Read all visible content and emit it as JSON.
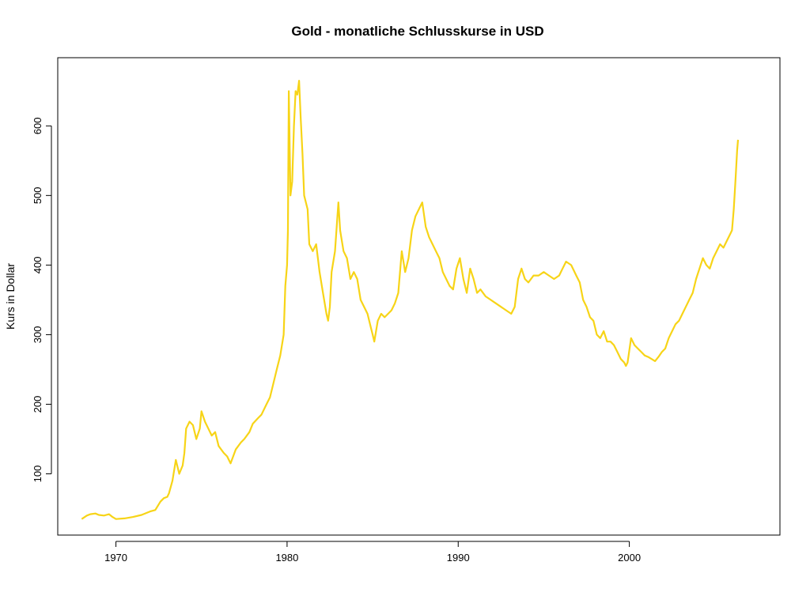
{
  "chart_data": {
    "type": "line",
    "title": "Gold  - monatliche Schlusskurse in USD",
    "xlabel": "",
    "ylabel": "Kurs in Dollar",
    "xlim": [
      1966.6,
      2008.8
    ],
    "ylim": [
      12,
      698
    ],
    "x_ticks": [
      1970,
      1980,
      1990,
      2000
    ],
    "y_ticks": [
      100,
      200,
      300,
      400,
      500,
      600
    ],
    "grid": false,
    "legend": "none",
    "series": [
      {
        "color": "#f7d417",
        "x": [
          1968.0,
          1968.3,
          1968.5,
          1968.8,
          1969.0,
          1969.3,
          1969.6,
          1969.8,
          1970.0,
          1970.5,
          1971.0,
          1971.5,
          1972.0,
          1972.3,
          1972.6,
          1972.8,
          1973.0,
          1973.1,
          1973.3,
          1973.5,
          1973.7,
          1973.9,
          1974.0,
          1974.1,
          1974.3,
          1974.5,
          1974.7,
          1974.9,
          1975.0,
          1975.2,
          1975.4,
          1975.6,
          1975.8,
          1976.0,
          1976.3,
          1976.5,
          1976.7,
          1977.0,
          1977.3,
          1977.5,
          1977.8,
          1978.0,
          1978.3,
          1978.5,
          1978.8,
          1979.0,
          1979.2,
          1979.4,
          1979.6,
          1979.8,
          1979.9,
          1980.0,
          1980.05,
          1980.1,
          1980.2,
          1980.3,
          1980.4,
          1980.5,
          1980.6,
          1980.7,
          1980.8,
          1980.9,
          1981.0,
          1981.2,
          1981.3,
          1981.5,
          1981.7,
          1981.9,
          1982.1,
          1982.3,
          1982.4,
          1982.5,
          1982.6,
          1982.8,
          1983.0,
          1983.1,
          1983.3,
          1983.5,
          1983.7,
          1983.9,
          1984.1,
          1984.3,
          1984.5,
          1984.7,
          1984.9,
          1985.0,
          1985.1,
          1985.3,
          1985.5,
          1985.7,
          1985.9,
          1986.1,
          1986.3,
          1986.5,
          1986.7,
          1986.9,
          1987.1,
          1987.3,
          1987.5,
          1987.7,
          1987.9,
          1988.1,
          1988.3,
          1988.5,
          1988.7,
          1988.9,
          1989.1,
          1989.3,
          1989.5,
          1989.7,
          1989.9,
          1990.1,
          1990.3,
          1990.5,
          1990.7,
          1990.9,
          1991.1,
          1991.3,
          1991.6,
          1991.9,
          1992.2,
          1992.5,
          1992.8,
          1993.1,
          1993.3,
          1993.5,
          1993.7,
          1993.9,
          1994.1,
          1994.4,
          1994.7,
          1995.0,
          1995.3,
          1995.6,
          1995.9,
          1996.1,
          1996.3,
          1996.6,
          1996.9,
          1997.1,
          1997.3,
          1997.5,
          1997.7,
          1997.9,
          1998.1,
          1998.3,
          1998.5,
          1998.7,
          1998.9,
          1999.1,
          1999.3,
          1999.5,
          1999.7,
          1999.8,
          1999.9,
          2000.1,
          2000.3,
          2000.5,
          2000.7,
          2000.9,
          2001.1,
          2001.3,
          2001.5,
          2001.7,
          2001.9,
          2002.1,
          2002.3,
          2002.5,
          2002.7,
          2002.9,
          2003.1,
          2003.3,
          2003.5,
          2003.7,
          2003.9,
          2004.1,
          2004.3,
          2004.5,
          2004.7,
          2004.9,
          2005.1,
          2005.3,
          2005.5,
          2005.7,
          2005.9,
          2006.0,
          2006.1,
          2006.2,
          2006.3,
          2006.35
        ],
        "y": [
          35,
          40,
          42,
          43,
          41,
          40,
          42,
          38,
          35,
          36,
          38,
          41,
          46,
          48,
          60,
          65,
          67,
          72,
          90,
          120,
          100,
          112,
          130,
          165,
          175,
          170,
          150,
          165,
          190,
          175,
          165,
          155,
          160,
          140,
          130,
          125,
          115,
          135,
          145,
          150,
          160,
          172,
          180,
          185,
          200,
          210,
          230,
          250,
          270,
          300,
          370,
          400,
          450,
          650,
          500,
          520,
          600,
          650,
          645,
          665,
          610,
          560,
          500,
          480,
          430,
          420,
          430,
          390,
          360,
          330,
          320,
          340,
          390,
          420,
          490,
          450,
          420,
          410,
          380,
          390,
          380,
          350,
          340,
          330,
          310,
          300,
          290,
          320,
          330,
          325,
          330,
          335,
          345,
          360,
          420,
          390,
          410,
          450,
          470,
          480,
          490,
          455,
          440,
          430,
          420,
          410,
          390,
          380,
          370,
          365,
          395,
          410,
          380,
          360,
          395,
          380,
          360,
          365,
          355,
          350,
          345,
          340,
          335,
          330,
          340,
          380,
          395,
          380,
          375,
          385,
          385,
          390,
          385,
          380,
          385,
          395,
          405,
          400,
          385,
          375,
          350,
          340,
          325,
          320,
          300,
          295,
          305,
          290,
          290,
          285,
          275,
          265,
          260,
          255,
          260,
          295,
          285,
          280,
          275,
          270,
          268,
          265,
          262,
          268,
          275,
          280,
          295,
          305,
          315,
          320,
          330,
          340,
          350,
          360,
          380,
          395,
          410,
          400,
          395,
          410,
          420,
          430,
          425,
          435,
          445,
          450,
          480,
          520,
          565,
          580
        ]
      }
    ]
  }
}
